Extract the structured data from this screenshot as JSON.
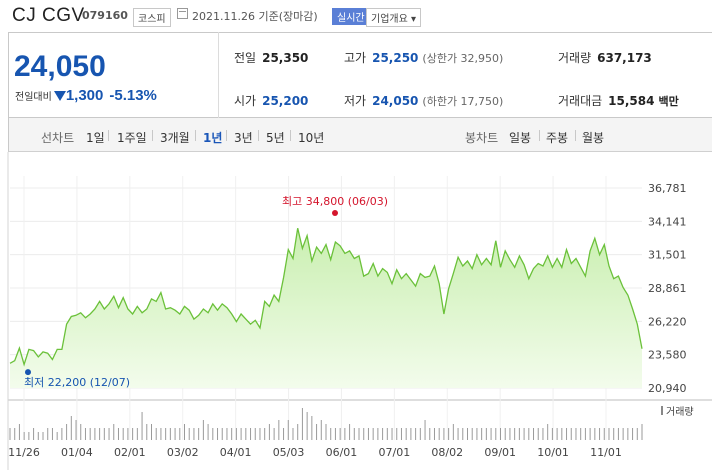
{
  "header": {
    "company": "CJ CGV",
    "code": "079160",
    "market": "코스피",
    "date": "2021.11.26 기준(장마감)",
    "realtime": "실시간",
    "company_info": "기업개요 ▾"
  },
  "quote": {
    "price": "24,050",
    "change_label": "전일대비",
    "change_amount": "1,300",
    "change_pct": "-5.13%",
    "prev_close_label": "전일",
    "prev_close": "25,350",
    "high_label": "고가",
    "high": "25,250",
    "upper_limit": "(상한가 32,950)",
    "volume_label": "거래량",
    "volume": "637,173",
    "open_label": "시가",
    "open": "25,200",
    "low_label": "저가",
    "low": "24,050",
    "lower_limit": "(하한가 17,750)",
    "amount_label": "거래대금",
    "amount": "15,584",
    "amount_unit": "백만"
  },
  "toolbar": {
    "line_chart": "선차트",
    "periods": [
      "1일",
      "1주일",
      "3개월",
      "1년",
      "3년",
      "5년",
      "10년"
    ],
    "selected_period": "1년",
    "candle_chart": "봉차트",
    "candle_periods": [
      "일봉",
      "주봉",
      "월봉"
    ]
  },
  "chart_data": {
    "type": "area",
    "yticks": [
      36781,
      34141,
      31501,
      28861,
      26220,
      23580,
      20940
    ],
    "ylim": [
      20940,
      36781
    ],
    "xticks": [
      "11/26",
      "01/04",
      "02/01",
      "03/02",
      "04/01",
      "05/03",
      "06/01",
      "07/01",
      "08/02",
      "09/01",
      "10/01",
      "11/01"
    ],
    "high_annotation": {
      "label": "최고 34,800 (06/03)",
      "value": 34800
    },
    "low_annotation": {
      "label": "최저 22,200 (12/07)",
      "value": 22200
    },
    "volume_legend": "거래량",
    "line_color": "#6bc13a",
    "fill_color": "#c9efb0",
    "series": [
      {
        "values": [
          22900,
          23100,
          24100,
          22800,
          24000,
          23900,
          23400,
          23800,
          23700,
          23200,
          24000,
          24000,
          26000,
          26600,
          26700,
          26900,
          26500,
          26800,
          27200,
          27800,
          27200,
          27600,
          28200,
          27300,
          28100,
          27200,
          26800,
          27400,
          26900,
          27200,
          28000,
          27800,
          28500,
          27200,
          27300,
          27100,
          26800,
          27400,
          27100,
          26400,
          26700,
          27200,
          26900,
          27600,
          27100,
          27600,
          27300,
          26800,
          26200,
          26800,
          26400,
          26000,
          26300,
          25700,
          27800,
          27400,
          28300,
          27800,
          29700,
          31900,
          31200,
          33600,
          32000,
          33000,
          31000,
          32100,
          31600,
          32300,
          31100,
          32500,
          32200,
          31600,
          31800,
          31200,
          31400,
          29800,
          30000,
          30800,
          29800,
          30400,
          30100,
          29200,
          30300,
          29600,
          30000,
          29500,
          29000,
          30000,
          29700,
          29800,
          30600,
          29200,
          26800,
          28800,
          30000,
          31300,
          30600,
          31000,
          30400,
          31500,
          30700,
          31200,
          30700,
          32600,
          30500,
          31800,
          31100,
          30500,
          31400,
          30700,
          29600,
          30400,
          30800,
          30600,
          31400,
          30500,
          31200,
          30500,
          31900,
          30800,
          31200,
          30500,
          29800,
          31800,
          32800,
          31500,
          32300,
          30600,
          29600,
          29800,
          28900,
          28300,
          27200,
          26000,
          24050
        ]
      }
    ],
    "volume": [
      3,
      3,
      4,
      2,
      2,
      3,
      2,
      2,
      3,
      3,
      2,
      3,
      4,
      6,
      5,
      4,
      3,
      3,
      3,
      3,
      3,
      3,
      4,
      3,
      3,
      3,
      3,
      3,
      7,
      4,
      4,
      3,
      3,
      3,
      3,
      3,
      3,
      4,
      3,
      3,
      3,
      5,
      4,
      3,
      3,
      3,
      3,
      3,
      3,
      3,
      3,
      3,
      3,
      3,
      3,
      4,
      3,
      5,
      3,
      5,
      3,
      4,
      8,
      7,
      6,
      4,
      5,
      4,
      3,
      3,
      3,
      3,
      4,
      3,
      3,
      3,
      3,
      3,
      3,
      3,
      3,
      3,
      3,
      3,
      3,
      3,
      3,
      3,
      5,
      3,
      3,
      3,
      3,
      3,
      4,
      3,
      3,
      3,
      3,
      3,
      3,
      3,
      3,
      3,
      3,
      3,
      3,
      3,
      3,
      3,
      3,
      3,
      3,
      3,
      4,
      3,
      3,
      3,
      3,
      3,
      3,
      3,
      3,
      3,
      3,
      3,
      3,
      3,
      3,
      3,
      3,
      3,
      3,
      3,
      4
    ]
  }
}
